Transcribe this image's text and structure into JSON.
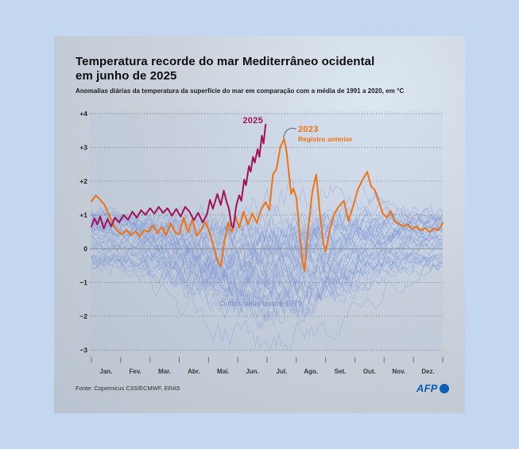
{
  "page": {
    "background_color": "#c3d8f0"
  },
  "chart_data": {
    "type": "line",
    "title": "Temperatura recorde do mar Mediterrâneo ocidental em junho de 2025",
    "title_lines": [
      "Temperatura recorde do mar Mediterrâneo ocidental",
      "em junho de 2025"
    ],
    "subtitle": "Anomalias diárias da temperatura da superfície do mar em comparação com a média de 1991 a 2020, em °C",
    "unit": "°C",
    "baseline_period": "1991 a 2020",
    "ylim": [
      -3,
      4
    ],
    "xlim_months": [
      0,
      12
    ],
    "grid": "horizontal dotted, solid zero line",
    "y_ticks": [
      {
        "value": 4,
        "label": "+4"
      },
      {
        "value": 3,
        "label": "+3"
      },
      {
        "value": 2,
        "label": "+2"
      },
      {
        "value": 1,
        "label": "+1"
      },
      {
        "value": 0,
        "label": "0"
      },
      {
        "value": -1,
        "label": "−1"
      },
      {
        "value": -2,
        "label": "−2"
      },
      {
        "value": -3,
        "label": "−3"
      }
    ],
    "months": [
      "Jan.",
      "Fev.",
      "Mar.",
      "Abr.",
      "Mai.",
      "Jun.",
      "Jul.",
      "Ago.",
      "Set.",
      "Out.",
      "Nov.",
      "Dez."
    ],
    "series": [
      {
        "name": "2025",
        "color": "#a21259",
        "x": [
          0,
          0.1,
          0.2,
          0.3,
          0.42,
          0.55,
          0.68,
          0.8,
          0.95,
          1.1,
          1.25,
          1.4,
          1.55,
          1.7,
          1.85,
          2,
          2.15,
          2.3,
          2.45,
          2.6,
          2.75,
          2.9,
          3.05,
          3.2,
          3.35,
          3.5,
          3.65,
          3.8,
          3.95,
          4.05,
          4.15,
          4.3,
          4.42,
          4.52,
          4.62,
          4.7,
          4.78,
          4.85,
          4.95,
          5.05,
          5.12,
          5.22,
          5.28,
          5.38,
          5.44,
          5.52,
          5.58,
          5.68,
          5.74,
          5.82,
          5.88,
          5.95
        ],
        "values": [
          0.65,
          0.9,
          0.72,
          0.95,
          0.6,
          0.88,
          0.66,
          0.92,
          0.78,
          1,
          0.86,
          1.1,
          0.92,
          1.14,
          1,
          1.2,
          1.04,
          1.24,
          1.06,
          1.2,
          0.98,
          1.18,
          0.95,
          1.24,
          1.1,
          0.85,
          1.06,
          0.78,
          1.02,
          1.45,
          1.18,
          1.62,
          1.3,
          1.72,
          1.38,
          1.18,
          0.7,
          0.62,
          1.28,
          1.58,
          1.42,
          2.05,
          1.88,
          2.45,
          2.28,
          2.72,
          2.55,
          2.95,
          2.72,
          3.35,
          3.12,
          3.68
        ]
      },
      {
        "name": "2023",
        "sublabel": "Registro anterior",
        "color": "#ef7414",
        "x": [
          0,
          0.15,
          0.3,
          0.45,
          0.6,
          0.75,
          0.9,
          1.05,
          1.2,
          1.35,
          1.5,
          1.65,
          1.8,
          1.95,
          2.1,
          2.25,
          2.4,
          2.55,
          2.7,
          2.85,
          3,
          3.15,
          3.3,
          3.45,
          3.6,
          3.75,
          3.9,
          4.05,
          4.18,
          4.3,
          4.42,
          4.55,
          4.68,
          4.8,
          4.92,
          5.05,
          5.2,
          5.35,
          5.5,
          5.65,
          5.8,
          5.95,
          6.08,
          6.2,
          6.32,
          6.45,
          6.58,
          6.66,
          6.74,
          6.82,
          6.9,
          7,
          7.1,
          7.2,
          7.28,
          7.4,
          7.55,
          7.68,
          7.8,
          7.92,
          8,
          8.15,
          8.3,
          8.45,
          8.62,
          8.78,
          8.95,
          9.1,
          9.25,
          9.42,
          9.55,
          9.68,
          9.8,
          9.95,
          10.1,
          10.22,
          10.35,
          10.5,
          10.65,
          10.8,
          10.95,
          11.1,
          11.25,
          11.4,
          11.55,
          11.7,
          11.85,
          12
        ],
        "values": [
          1.4,
          1.58,
          1.45,
          1.3,
          1,
          0.72,
          0.52,
          0.42,
          0.56,
          0.4,
          0.52,
          0.36,
          0.55,
          0.5,
          0.7,
          0.46,
          0.64,
          0.4,
          0.76,
          0.5,
          0.42,
          0.92,
          0.5,
          0.86,
          0.38,
          0.56,
          0.8,
          0.45,
          0.05,
          -0.35,
          -0.52,
          0.25,
          0.78,
          0.48,
          0.95,
          0.62,
          1.1,
          0.72,
          1.05,
          0.76,
          1.16,
          1.38,
          1.15,
          2.2,
          2.35,
          3,
          3.25,
          2.92,
          2.28,
          1.62,
          1.78,
          1.52,
          0.6,
          -0.3,
          -0.66,
          0.55,
          1.7,
          2.2,
          1.1,
          0.18,
          -0.08,
          0.6,
          1.05,
          1.25,
          1.42,
          0.82,
          1.3,
          1.75,
          2.02,
          2.28,
          1.85,
          1.74,
          1.45,
          1.05,
          0.92,
          1.12,
          0.82,
          0.74,
          0.66,
          0.72,
          0.58,
          0.66,
          0.54,
          0.62,
          0.5,
          0.6,
          0.55,
          0.76
        ]
      }
    ],
    "background_series": {
      "label": "Outros anos desde 1979",
      "count": 45,
      "color": "#7f98d8",
      "opacity": 0.38
    },
    "legend_position": "inline annotations at line peaks"
  },
  "footer": {
    "source": "Fonte: Copernicus C3S/ECMWF, ERA5",
    "logo_text": "AFP",
    "logo_color": "#0c5fb3"
  }
}
